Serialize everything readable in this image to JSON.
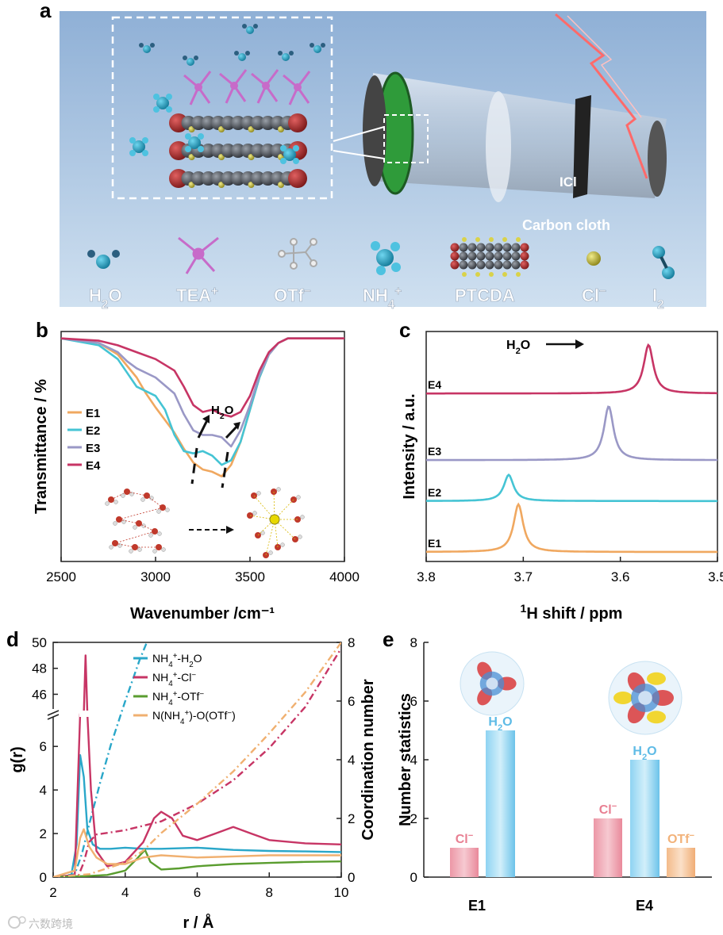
{
  "panel_labels": {
    "a": "a",
    "b": "b",
    "c": "c",
    "d": "d",
    "e": "e"
  },
  "panel_a": {
    "legend": [
      "H2O",
      "TEA+",
      "OTf−",
      "NH4+",
      "PTCDA",
      "Cl−",
      "I2"
    ],
    "labels": {
      "icl": "ICl",
      "carbon_cloth": "Carbon cloth"
    },
    "colors": {
      "bg_top": "#8fb0d6",
      "bg_bottom": "#c9dcee",
      "teal": "#2aa7c9",
      "magenta": "#c76bc9",
      "green": "#2f9b3a",
      "red": "#b03030",
      "yellow": "#d9d24a"
    }
  },
  "chart_data": [
    {
      "panel": "b",
      "type": "line",
      "xlabel": "Wavenumber /cm⁻¹",
      "ylabel": "Transmittance / %",
      "xlim": [
        2500,
        4000
      ],
      "xticks": [
        2500,
        3000,
        3500,
        4000
      ],
      "ylim": [
        0,
        100
      ],
      "annotation": "H2O",
      "series": [
        {
          "name": "E1",
          "color": "#f0a860",
          "x": [
            2500,
            2700,
            2800,
            2900,
            2950,
            3000,
            3100,
            3150,
            3200,
            3250,
            3300,
            3350,
            3400,
            3450,
            3500,
            3550,
            3600,
            3650,
            3700,
            3800,
            4000
          ],
          "y": [
            97,
            95,
            90,
            80,
            73,
            67,
            56,
            49,
            43,
            40,
            39,
            37,
            42,
            52,
            66,
            80,
            90,
            95,
            97,
            97,
            97
          ]
        },
        {
          "name": "E2",
          "color": "#45c4d4",
          "x": [
            2500,
            2700,
            2800,
            2850,
            2900,
            3000,
            3050,
            3100,
            3150,
            3200,
            3250,
            3300,
            3350,
            3400,
            3450,
            3500,
            3550,
            3600,
            3650,
            3700,
            3800,
            4000
          ],
          "y": [
            97,
            94,
            88,
            82,
            76,
            72,
            66,
            55,
            48,
            47,
            48,
            46,
            42,
            44,
            52,
            66,
            80,
            90,
            95,
            97,
            97,
            97
          ]
        },
        {
          "name": "E3",
          "color": "#9a98c6",
          "x": [
            2500,
            2700,
            2800,
            2850,
            2900,
            3000,
            3100,
            3150,
            3200,
            3250,
            3300,
            3350,
            3400,
            3450,
            3500,
            3550,
            3600,
            3650,
            3700,
            3800,
            4000
          ],
          "y": [
            97,
            95,
            91,
            87,
            84,
            80,
            73,
            64,
            57,
            55,
            55,
            54,
            50,
            57,
            68,
            81,
            90,
            95,
            97,
            97,
            97
          ]
        },
        {
          "name": "E4",
          "color": "#c73565",
          "x": [
            2500,
            2700,
            2800,
            2900,
            3000,
            3100,
            3150,
            3200,
            3250,
            3300,
            3350,
            3400,
            3450,
            3500,
            3550,
            3600,
            3650,
            3700,
            3800,
            4000
          ],
          "y": [
            97,
            96,
            94,
            91,
            88,
            83,
            76,
            68,
            65,
            66,
            64,
            63,
            65,
            72,
            83,
            91,
            95,
            97,
            97,
            97
          ]
        }
      ]
    },
    {
      "panel": "c",
      "type": "line",
      "xlabel": "¹H shift / ppm",
      "ylabel": "Intensity / a.u.",
      "xlim": [
        3.8,
        3.5
      ],
      "xticks": [
        3.8,
        3.7,
        3.6,
        3.5
      ],
      "annotation": "H2O",
      "series": [
        {
          "name": "E1",
          "color": "#f0a860",
          "peak": 3.705,
          "offset": 0,
          "height": 1.0
        },
        {
          "name": "E2",
          "color": "#45c4d4",
          "peak": 3.715,
          "offset": 1.07,
          "height": 0.55
        },
        {
          "name": "E3",
          "color": "#9a98c6",
          "peak": 3.612,
          "offset": 1.93,
          "height": 1.13
        },
        {
          "name": "E4",
          "color": "#c73565",
          "peak": 3.571,
          "offset": 3.33,
          "height": 1.02
        }
      ]
    },
    {
      "panel": "d",
      "type": "line",
      "xlabel": "r / Å",
      "ylabel": "g(r)",
      "y2label": "Coordination number",
      "xlim": [
        2,
        10
      ],
      "xticks": [
        2,
        4,
        6,
        8,
        10
      ],
      "ylim_lower": [
        0,
        7.5
      ],
      "yticks_lower": [
        0,
        2,
        4,
        6
      ],
      "ylim_upper": [
        44.5,
        50
      ],
      "yticks_upper": [
        46,
        48,
        50
      ],
      "y2lim": [
        0,
        8
      ],
      "y2ticks": [
        0,
        2,
        4,
        6,
        8
      ],
      "series": [
        {
          "name": "NH4+-H2O",
          "color": "#2aa7c9",
          "x": [
            2,
            2.5,
            2.65,
            2.75,
            2.85,
            2.95,
            3.1,
            3.3,
            3.6,
            4,
            4.5,
            5,
            6,
            7,
            8,
            9,
            10
          ],
          "y": [
            0,
            0.05,
            1.5,
            5.6,
            4.6,
            2.2,
            1.5,
            1.3,
            1.3,
            1.35,
            1.3,
            1.3,
            1.35,
            1.25,
            1.2,
            1.18,
            1.15
          ],
          "cn_x": [
            2,
            2.6,
            2.8,
            3.0,
            3.3,
            3.6,
            4.0,
            4.4,
            4.6
          ],
          "cn_y": [
            0,
            0.1,
            0.8,
            1.8,
            3.2,
            4.5,
            6.0,
            7.4,
            8.0
          ]
        },
        {
          "name": "NH4+-Cl−",
          "color": "#c73565",
          "x": [
            2,
            2.6,
            2.75,
            2.85,
            2.9,
            2.95,
            3.05,
            3.2,
            3.5,
            4,
            4.5,
            4.8,
            5,
            5.3,
            5.6,
            6,
            6.5,
            7,
            7.5,
            8,
            9,
            10
          ],
          "y": [
            0,
            0.1,
            8,
            30,
            49,
            30,
            4,
            1.2,
            0.5,
            0.7,
            1.6,
            2.7,
            3.0,
            2.7,
            1.9,
            1.7,
            2.0,
            2.3,
            2.0,
            1.7,
            1.55,
            1.5
          ],
          "cn_x": [
            2,
            2.7,
            2.85,
            3.0,
            3.2,
            4,
            5,
            6,
            7,
            8,
            9,
            10
          ],
          "cn_y": [
            0,
            0.05,
            0.5,
            1.2,
            1.45,
            1.6,
            1.9,
            2.5,
            3.3,
            4.4,
            5.8,
            7.8
          ]
        },
        {
          "name": "NH4+-OTf−",
          "color": "#5a9d2f",
          "x": [
            2,
            3,
            3.5,
            4,
            4.3,
            4.55,
            4.7,
            5,
            5.5,
            6,
            7,
            8,
            9,
            10
          ],
          "y": [
            0,
            0.05,
            0.1,
            0.3,
            0.8,
            1.25,
            0.7,
            0.35,
            0.4,
            0.5,
            0.6,
            0.65,
            0.7,
            0.72
          ]
        },
        {
          "name": "N(NH4+)-O(OTf−)",
          "color": "#f0b070",
          "x": [
            2,
            2.6,
            2.75,
            2.85,
            3.0,
            3.2,
            3.5,
            4,
            4.5,
            5,
            6,
            7,
            8,
            9,
            10
          ],
          "y": [
            0,
            0.3,
            1.8,
            2.2,
            1.4,
            0.9,
            0.6,
            0.6,
            0.9,
            1.0,
            0.9,
            0.95,
            1.0,
            1.0,
            1.0
          ],
          "cn_x": [
            2,
            3,
            4,
            4.5,
            5,
            6,
            7,
            8,
            9,
            10
          ],
          "cn_y": [
            0,
            0.1,
            0.5,
            0.9,
            1.5,
            2.5,
            3.6,
            4.9,
            6.3,
            8.0
          ]
        }
      ]
    },
    {
      "panel": "e",
      "type": "bar",
      "ylabel": "Number statistics",
      "ylim": [
        0,
        8
      ],
      "yticks": [
        0,
        2,
        4,
        6,
        8
      ],
      "categories": [
        "E1",
        "E4"
      ],
      "series": [
        {
          "name": "Cl−",
          "color": "#e87f92",
          "values": [
            1,
            2
          ]
        },
        {
          "name": "H2O",
          "color": "#5ebbe6",
          "values": [
            5,
            4
          ]
        },
        {
          "name": "OTf−",
          "color": "#f2b27a",
          "values": [
            0,
            1
          ]
        }
      ]
    }
  ],
  "watermark": "六数跨境"
}
